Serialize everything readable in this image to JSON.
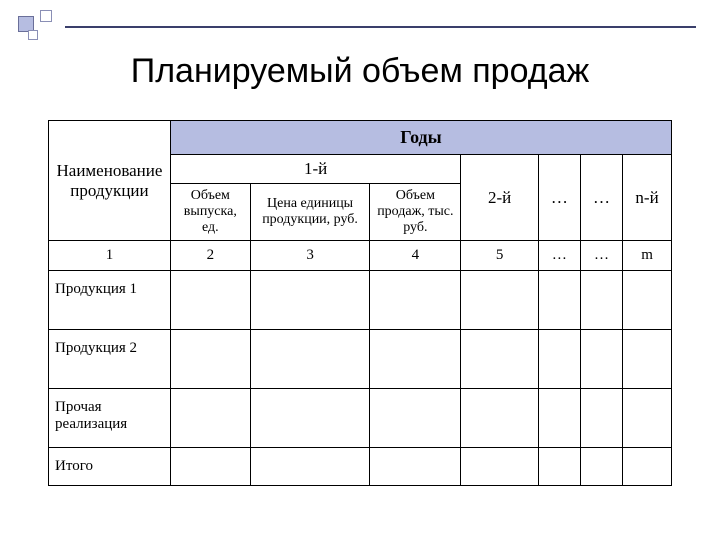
{
  "title": "Планируемый объем продаж",
  "table": {
    "header": {
      "name": "Наименование продукции",
      "years": "Годы",
      "year1": "1-й",
      "year2": "2-й",
      "dots": "…",
      "yearN": "n-й",
      "sub_volume": "Объем выпуска, ед.",
      "sub_price": "Цена единицы продукции, руб.",
      "sub_sales": "Объем продаж, тыс. руб."
    },
    "colnums": {
      "c1": "1",
      "c2": "2",
      "c3": "3",
      "c4": "4",
      "c5": "5",
      "c6": "…",
      "c7": "…",
      "cm": "m"
    },
    "rows": {
      "r1": "Продукция 1",
      "r2": "Продукция 2",
      "r3": "Прочая реализация",
      "r4": "Итого"
    },
    "colors": {
      "header_fill": "#b6bde1",
      "border": "#000000",
      "background": "#ffffff"
    }
  }
}
